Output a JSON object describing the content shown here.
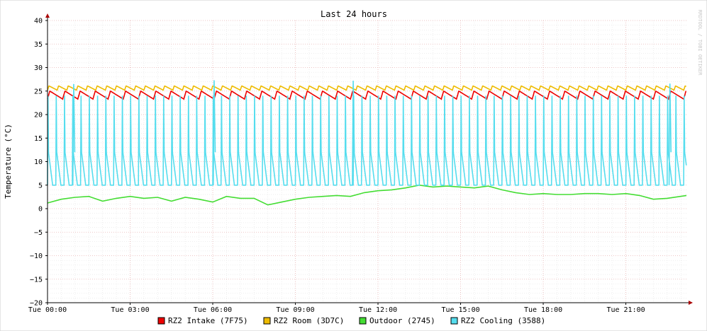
{
  "chart_data": {
    "type": "line",
    "title": "Last 24 hours",
    "ylabel": "Temperature (°C)",
    "watermark": "RRDTOOL / TOBI OETIKER",
    "ylim": [
      -20,
      40
    ],
    "yticks": [
      40,
      35,
      30,
      25,
      20,
      15,
      10,
      5,
      0,
      -5,
      -10,
      -15,
      -20
    ],
    "xlim_hours": [
      0,
      23.2
    ],
    "xticks": [
      {
        "hour": 0,
        "label": "Tue 00:00"
      },
      {
        "hour": 3,
        "label": "Tue 03:00"
      },
      {
        "hour": 6,
        "label": "Tue 06:00"
      },
      {
        "hour": 9,
        "label": "Tue 09:00"
      },
      {
        "hour": 12,
        "label": "Tue 12:00"
      },
      {
        "hour": 15,
        "label": "Tue 15:00"
      },
      {
        "hour": 18,
        "label": "Tue 18:00"
      },
      {
        "hour": 21,
        "label": "Tue 21:00"
      }
    ],
    "grid": true,
    "legend_position": "bottom",
    "series": [
      {
        "name": "RZ2 Intake (7F75)",
        "color": "#ee0000",
        "kind": "sawtooth",
        "base": 23.3,
        "peak": 25.0,
        "period_hours": 0.55
      },
      {
        "name": "RZ2 Room (3D7C)",
        "color": "#eebb00",
        "kind": "sawtooth",
        "base": 25.2,
        "peak": 26.1,
        "period_hours": 0.35
      },
      {
        "name": "Outdoor (2745)",
        "color": "#44dd33",
        "kind": "points",
        "x": [
          0,
          0.5,
          1,
          1.5,
          2,
          2.5,
          3,
          3.5,
          4,
          4.5,
          5,
          5.5,
          6,
          6.5,
          7,
          7.5,
          8,
          8.5,
          9,
          9.5,
          10,
          10.5,
          11,
          11.5,
          12,
          12.5,
          13,
          13.5,
          14,
          14.5,
          15,
          15.5,
          16,
          16.5,
          17,
          17.5,
          18,
          18.5,
          19,
          19.5,
          20,
          20.5,
          21,
          21.5,
          22,
          22.5,
          23.2
        ],
        "values": [
          1.2,
          2.0,
          2.4,
          2.6,
          1.6,
          2.2,
          2.6,
          2.2,
          2.4,
          1.6,
          2.4,
          2.0,
          1.4,
          2.6,
          2.2,
          2.2,
          0.8,
          1.4,
          2.0,
          2.4,
          2.6,
          2.8,
          2.6,
          3.4,
          3.8,
          4.0,
          4.4,
          5.0,
          4.6,
          4.8,
          4.6,
          4.4,
          4.8,
          4.0,
          3.4,
          3.0,
          3.2,
          3.0,
          3.0,
          3.2,
          3.2,
          3.0,
          3.2,
          2.8,
          2.0,
          2.2,
          2.8
        ]
      },
      {
        "name": "RZ2 Cooling (3588)",
        "color": "#55ddee",
        "kind": "spikes",
        "base": 5.0,
        "peak": 24.0,
        "period_hours": 0.3,
        "big_spikes": [
          {
            "hour": 0.95,
            "value": 26.5
          },
          {
            "hour": 6.05,
            "value": 27.3
          },
          {
            "hour": 11.1,
            "value": 27.2
          },
          {
            "hour": 22.6,
            "value": 26.6
          }
        ]
      }
    ]
  }
}
